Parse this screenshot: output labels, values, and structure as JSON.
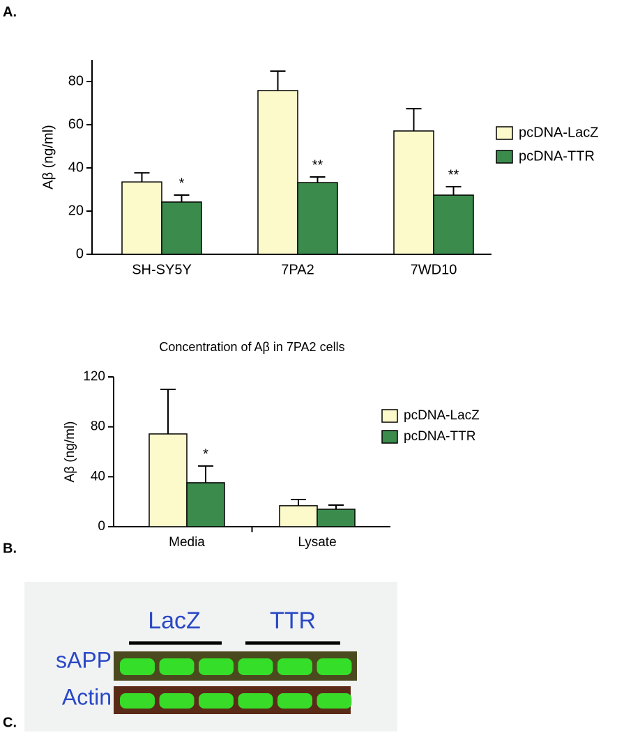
{
  "panels": [
    "A.",
    "B.",
    "C."
  ],
  "chart_data": [
    {
      "type": "bar",
      "ylabel": "Aβ (ng/ml)",
      "categories": [
        "SH-SY5Y",
        "7PA2",
        "7WD10"
      ],
      "series": [
        {
          "name": "pcDNA-LacZ",
          "color": "#fcfacb",
          "values": [
            33.5,
            75.8,
            57.1
          ],
          "errors": [
            4.2,
            9,
            10.3
          ]
        },
        {
          "name": "pcDNA-TTR",
          "color": "#3b8c4c",
          "values": [
            24.2,
            33.2,
            27.4
          ],
          "errors": [
            3.2,
            2.6,
            3.9
          ]
        }
      ],
      "annotations": [
        "*",
        "**",
        "**"
      ],
      "ylim": [
        0,
        90
      ],
      "yticks": [
        0,
        20,
        40,
        60,
        80
      ]
    },
    {
      "type": "bar",
      "title": "Concentration of Aβ in 7PA2 cells",
      "ylabel": "Aβ (ng/ml)",
      "categories": [
        "Media",
        "Lysate"
      ],
      "series": [
        {
          "name": "pcDNA-LacZ",
          "color": "#fcfacb",
          "values": [
            74.3,
            16.8
          ],
          "errors": [
            35.7,
            5
          ]
        },
        {
          "name": "pcDNA-TTR",
          "color": "#3b8c4c",
          "values": [
            35.2,
            14
          ],
          "errors": [
            13.4,
            3.3
          ]
        }
      ],
      "annotations": [
        "*",
        null
      ],
      "ylim": [
        0,
        120
      ],
      "yticks": [
        0,
        40,
        80,
        120
      ]
    }
  ],
  "blot": {
    "groups": [
      "LacZ",
      "TTR"
    ],
    "rows": [
      "sAPP",
      "Actin"
    ]
  }
}
